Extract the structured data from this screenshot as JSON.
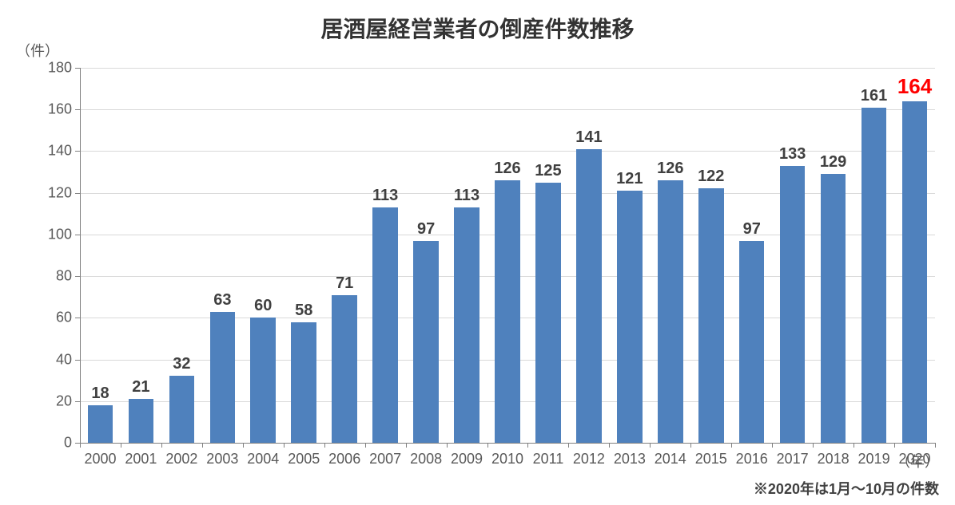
{
  "chart": {
    "type": "bar",
    "title": "居酒屋経営業者の倒産件数推移",
    "title_fontsize": 28,
    "title_color": "#333333",
    "y_unit_label": "（件）",
    "x_unit_label": "（年）",
    "axis_label_fontsize": 18,
    "axis_label_color": "#595959",
    "footnote": "※2020年は1月～10月の件数",
    "footnote_fontsize": 18,
    "footnote_color": "#404040",
    "background_color": "#ffffff",
    "grid_color": "#d9d9d9",
    "axis_line_color": "#808080",
    "bar_color": "#4f81bd",
    "bar_width_ratio": 0.62,
    "ylim": [
      0,
      180
    ],
    "ytick_step": 20,
    "tick_fontsize": 18,
    "tick_color": "#595959",
    "value_label_fontsize": 20,
    "value_label_color": "#404040",
    "highlight_index": 20,
    "highlight_color": "#ff0000",
    "highlight_fontsize": 26,
    "categories": [
      "2000",
      "2001",
      "2002",
      "2003",
      "2004",
      "2005",
      "2006",
      "2007",
      "2008",
      "2009",
      "2010",
      "2011",
      "2012",
      "2013",
      "2014",
      "2015",
      "2016",
      "2017",
      "2018",
      "2019",
      "2020"
    ],
    "values": [
      18,
      21,
      32,
      63,
      60,
      58,
      71,
      113,
      97,
      113,
      126,
      125,
      141,
      121,
      126,
      122,
      97,
      133,
      129,
      161,
      164
    ]
  }
}
